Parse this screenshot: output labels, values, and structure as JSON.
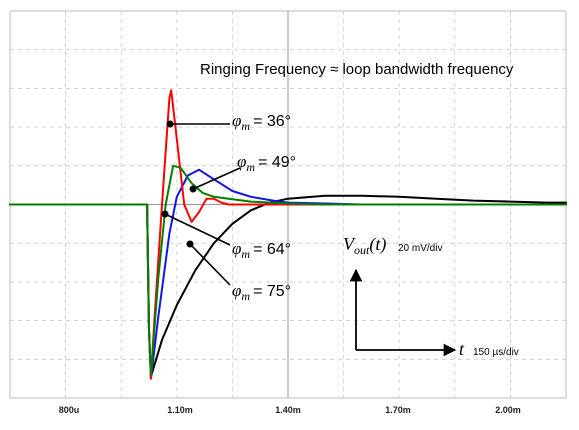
{
  "chart_data": {
    "type": "line",
    "title": "Ringing Frequency ≈ loop bandwidth frequency",
    "x_ticks": [
      "800u",
      "1.10m",
      "1.40m",
      "1.70m",
      "2.00m"
    ],
    "xlim": [
      0.00065,
      0.00215
    ],
    "ylim": [
      -100,
      100
    ],
    "grid": true,
    "series": [
      {
        "name": "φm = 36°",
        "color": "#ff0000",
        "x": [
          0.00065,
          0.00102,
          0.001025,
          0.00103,
          0.00104,
          0.00106,
          0.00108,
          0.001085,
          0.0011,
          0.00112,
          0.00114,
          0.00116,
          0.00118,
          0.0012,
          0.00122,
          0.00124,
          0.00128,
          0.00135,
          0.00145,
          0.00215
        ],
        "y": [
          0,
          0,
          -65,
          -90,
          -58,
          0,
          55,
          59,
          34,
          0,
          -9,
          -4,
          3,
          3,
          1,
          0,
          0,
          0,
          0,
          0
        ]
      },
      {
        "name": "φm = 49°",
        "color": "#008000",
        "x": [
          0.00065,
          0.00102,
          0.001025,
          0.00103,
          0.00105,
          0.00107,
          0.00109,
          0.00111,
          0.00114,
          0.00117,
          0.0012,
          0.00124,
          0.0013,
          0.0014,
          0.0015,
          0.00215
        ],
        "y": [
          0,
          0,
          -65,
          -88,
          -38,
          0,
          20,
          19,
          11,
          6,
          4,
          3,
          1.5,
          0.5,
          0,
          0
        ]
      },
      {
        "name": "φm = 64°",
        "color": "#1414e6",
        "x": [
          0.00065,
          0.00102,
          0.001025,
          0.00103,
          0.00105,
          0.00108,
          0.0011,
          0.00113,
          0.00116,
          0.0012,
          0.00125,
          0.0013,
          0.00136,
          0.0014,
          0.0015,
          0.0016,
          0.00215
        ],
        "y": [
          0,
          0,
          -65,
          -90,
          -58,
          -15,
          4,
          15,
          18,
          13,
          7,
          4,
          2,
          1,
          0.5,
          0,
          0
        ]
      },
      {
        "name": "φm = 75°",
        "color": "#000000",
        "x": [
          0.00065,
          0.00102,
          0.001025,
          0.00103,
          0.00106,
          0.0011,
          0.00115,
          0.0012,
          0.00125,
          0.0013,
          0.00135,
          0.0014,
          0.0015,
          0.0016,
          0.0017,
          0.0018,
          0.0019,
          0.002,
          0.0021,
          0.00215
        ],
        "y": [
          0,
          0,
          -65,
          -89,
          -70,
          -52,
          -34,
          -20,
          -10,
          -3,
          1,
          3,
          4.5,
          4.5,
          4,
          3,
          2,
          1.5,
          1,
          1
        ]
      }
    ],
    "annotations": {
      "vout_var": "V",
      "vout_sub": "out",
      "vout_arg": "(t)",
      "vout_div": "20 mV/div",
      "t_var": "t",
      "t_div": "150 µs/div",
      "phi_symbol": "φ",
      "phi_sub": "m",
      "phi_36": "= 36°",
      "phi_49": "= 49°",
      "phi_64": "= 64°",
      "phi_75": "= 75°"
    }
  }
}
